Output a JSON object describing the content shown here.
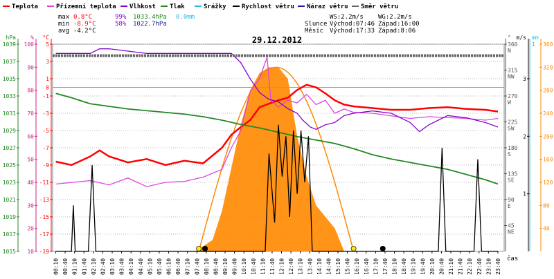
{
  "legend": [
    {
      "label": "Teplota",
      "color": "#ff0000"
    },
    {
      "label": "Přízemní teplota",
      "color": "#dd44dd"
    },
    {
      "label": "Vlhkost",
      "color": "#8800cc"
    },
    {
      "label": "Tlak",
      "color": "#228822"
    },
    {
      "label": "Srážky",
      "color": "#22bbdd"
    },
    {
      "label": "Rychlost větru",
      "color": "#000000"
    },
    {
      "label": "Náraz větru",
      "color": "#1a1a99"
    },
    {
      "label": "Směr větru",
      "color": "#666666"
    }
  ],
  "stats": {
    "max_label": "max",
    "min_label": "min",
    "avg_label": "avg",
    "max_temp": "0.8°C",
    "max_hum": "99%",
    "max_press": "1033.4hPa",
    "max_rain": "0.0mm",
    "min_temp": "-8.9°C",
    "min_hum": "58%",
    "min_press": "1022.7hPa",
    "avg_temp": "-4.2°C",
    "ws": "WS:2.2m/s",
    "wg": "WG:2.2m/s",
    "sun_label": "Slunce",
    "sunrise": "Východ:07:46",
    "sunset": "Západ:16:00",
    "moon_label": "Měsíc",
    "moonrise": "Východ:17:33",
    "moonset": "Západ:8:06"
  },
  "chart_data": {
    "type": "line",
    "title": "29.12.2012",
    "xlabel": "čas",
    "x_ticks": [
      "00:10",
      "00:40",
      "01:10",
      "01:40",
      "02:10",
      "02:40",
      "03:10",
      "03:40",
      "04:10",
      "04:40",
      "05:10",
      "05:40",
      "06:10",
      "06:40",
      "07:10",
      "07:40",
      "08:10",
      "08:40",
      "09:10",
      "09:40",
      "10:10",
      "10:40",
      "11:10",
      "11:40",
      "12:10",
      "12:40",
      "13:10",
      "13:40",
      "14:10",
      "14:40",
      "15:10",
      "15:40",
      "16:10",
      "16:40",
      "17:10",
      "17:40",
      "18:10",
      "18:40",
      "19:10",
      "19:40",
      "20:10",
      "20:40",
      "21:10",
      "21:40",
      "22:10",
      "22:40",
      "23:10",
      "23:40"
    ],
    "axes": {
      "hpa": {
        "label": "hPa",
        "ticks": [
          "1015",
          "1017",
          "1019",
          "1021",
          "1023",
          "1025",
          "1027",
          "1029",
          "1031",
          "1033",
          "1035",
          "1037",
          "1039"
        ]
      },
      "percent": {
        "label": "%",
        "ticks": [
          "10",
          "20",
          "30",
          "40",
          "50",
          "60",
          "70",
          "80",
          "90",
          "100"
        ]
      },
      "celsius": {
        "label": "°C",
        "ticks": [
          "-19",
          "-17",
          "-15",
          "-13",
          "-11",
          "-9",
          "-7",
          "-5",
          "-3",
          "-1",
          "1",
          "3",
          "5"
        ],
        "zero_label": "0"
      },
      "direction": {
        "label": "°",
        "ticks": [
          "45\nNE",
          "90\nE",
          "135\nSE",
          "180\nS",
          "225\nSW",
          "270\nW",
          "315\nNW",
          "360\nN"
        ]
      },
      "wind": {
        "label": "m/s",
        "ticks": [
          "1",
          "2",
          "3"
        ]
      },
      "rain": {
        "label": "mm",
        "ticks": [
          "1"
        ]
      },
      "solar": {
        "ticks": [
          "40",
          "80",
          "120",
          "160",
          "200",
          "240",
          "280",
          "320",
          "360"
        ]
      }
    },
    "series": [
      {
        "name": "Teplota",
        "unit": "°C",
        "color": "#ff0000",
        "points": [
          [
            0.17,
            -8.6
          ],
          [
            1,
            -9
          ],
          [
            2,
            -8
          ],
          [
            2.5,
            -7.3
          ],
          [
            3,
            -8
          ],
          [
            4,
            -8.7
          ],
          [
            5,
            -8.3
          ],
          [
            6,
            -9
          ],
          [
            7,
            -8.5
          ],
          [
            8,
            -8.8
          ],
          [
            9,
            -7
          ],
          [
            9.5,
            -5.5
          ],
          [
            10,
            -4.6
          ],
          [
            10.5,
            -3.8
          ],
          [
            11,
            -2.3
          ],
          [
            12,
            -1.5
          ],
          [
            12.5,
            -1.2
          ],
          [
            13,
            -0.3
          ],
          [
            13.5,
            0.3
          ],
          [
            14,
            0
          ],
          [
            14.5,
            -0.7
          ],
          [
            15,
            -1.5
          ],
          [
            15.5,
            -2
          ],
          [
            16,
            -2.2
          ],
          [
            17,
            -2.4
          ],
          [
            18,
            -2.6
          ],
          [
            19,
            -2.6
          ],
          [
            20,
            -2.4
          ],
          [
            21,
            -2.3
          ],
          [
            22,
            -2.5
          ],
          [
            23,
            -2.6
          ],
          [
            23.67,
            -2.8
          ]
        ]
      },
      {
        "name": "Přízemní teplota",
        "unit": "°C",
        "color": "#dd44dd",
        "points": [
          [
            0.17,
            -11.2
          ],
          [
            2,
            -10.8
          ],
          [
            3,
            -11.3
          ],
          [
            4,
            -10.5
          ],
          [
            5,
            -11.5
          ],
          [
            6,
            -11
          ],
          [
            7,
            -10.9
          ],
          [
            8,
            -10.4
          ],
          [
            9,
            -9.5
          ],
          [
            9.5,
            -7
          ],
          [
            10,
            -5
          ],
          [
            10.5,
            -0.5
          ],
          [
            11,
            1
          ],
          [
            11.4,
            3.5
          ],
          [
            11.6,
            -1.5
          ],
          [
            12,
            -2.3
          ],
          [
            12.5,
            -1.5
          ],
          [
            13,
            -1.8
          ],
          [
            13.5,
            -0.8
          ],
          [
            14,
            -2
          ],
          [
            14.5,
            -1.5
          ],
          [
            15,
            -3
          ],
          [
            15.5,
            -2.5
          ],
          [
            16,
            -2.9
          ],
          [
            17,
            -3
          ],
          [
            18,
            -3.3
          ],
          [
            19,
            -3.6
          ],
          [
            20,
            -3.4
          ],
          [
            21,
            -3.5
          ],
          [
            22,
            -3.6
          ],
          [
            23,
            -3.8
          ],
          [
            23.67,
            -3.6
          ]
        ]
      },
      {
        "name": "Vlhkost",
        "unit": "%",
        "color": "#8800cc",
        "points": [
          [
            0.17,
            96
          ],
          [
            1,
            96
          ],
          [
            2,
            96
          ],
          [
            2.5,
            98
          ],
          [
            3,
            98
          ],
          [
            4,
            97
          ],
          [
            5,
            96
          ],
          [
            6,
            96
          ],
          [
            7,
            96
          ],
          [
            8,
            96
          ],
          [
            9,
            96
          ],
          [
            9.5,
            96
          ],
          [
            10,
            92
          ],
          [
            10.5,
            85
          ],
          [
            11,
            79
          ],
          [
            11.5,
            76
          ],
          [
            12,
            75
          ],
          [
            12.5,
            72
          ],
          [
            13,
            70
          ],
          [
            13.3,
            67
          ],
          [
            13.7,
            64
          ],
          [
            14,
            63
          ],
          [
            14.5,
            65
          ],
          [
            15,
            66
          ],
          [
            15.5,
            69
          ],
          [
            16,
            70
          ],
          [
            17,
            71
          ],
          [
            18,
            70
          ],
          [
            19,
            66
          ],
          [
            19.5,
            62
          ],
          [
            20,
            65
          ],
          [
            21,
            69
          ],
          [
            22,
            68
          ],
          [
            23,
            66
          ],
          [
            23.67,
            64
          ]
        ]
      },
      {
        "name": "Tlak",
        "unit": "hPa",
        "color": "#228822",
        "points": [
          [
            0.17,
            1033.3
          ],
          [
            1,
            1032.8
          ],
          [
            2,
            1032.1
          ],
          [
            3,
            1031.8
          ],
          [
            4,
            1031.5
          ],
          [
            5,
            1031.3
          ],
          [
            6,
            1031.1
          ],
          [
            7,
            1030.9
          ],
          [
            8,
            1030.6
          ],
          [
            9,
            1030.2
          ],
          [
            10,
            1029.7
          ],
          [
            11,
            1029.3
          ],
          [
            12,
            1028.8
          ],
          [
            13,
            1028.3
          ],
          [
            14,
            1027.9
          ],
          [
            15,
            1027.5
          ],
          [
            16,
            1026.9
          ],
          [
            17,
            1026.2
          ],
          [
            18,
            1025.7
          ],
          [
            19,
            1025.3
          ],
          [
            20,
            1024.9
          ],
          [
            21,
            1024.5
          ],
          [
            22,
            1023.9
          ],
          [
            23,
            1023.3
          ],
          [
            23.67,
            1022.8
          ]
        ]
      },
      {
        "name": "Rychlost větru",
        "unit": "m/s",
        "color": "#000000",
        "points": [
          [
            0.17,
            0
          ],
          [
            1,
            0
          ],
          [
            1.1,
            0.8
          ],
          [
            1.2,
            0
          ],
          [
            1.9,
            0
          ],
          [
            2.1,
            1.5
          ],
          [
            2.3,
            0
          ],
          [
            11.3,
            0
          ],
          [
            11.5,
            1.7
          ],
          [
            11.8,
            0.5
          ],
          [
            12,
            2.2
          ],
          [
            12.2,
            1.3
          ],
          [
            12.4,
            2
          ],
          [
            12.6,
            0.6
          ],
          [
            12.8,
            2.1
          ],
          [
            13,
            1
          ],
          [
            13.2,
            2.1
          ],
          [
            13.4,
            1.2
          ],
          [
            13.6,
            2
          ],
          [
            13.8,
            0
          ],
          [
            20.5,
            0
          ],
          [
            20.7,
            1.8
          ],
          [
            20.9,
            0
          ],
          [
            22.4,
            0
          ],
          [
            22.6,
            1.6
          ],
          [
            22.8,
            0
          ],
          [
            23.67,
            0
          ]
        ]
      },
      {
        "name": "Směr větru",
        "unit": "°",
        "color": "#666666",
        "points": [
          [
            0.17,
            340
          ],
          [
            23.67,
            340
          ]
        ]
      }
    ],
    "solar_radiation": {
      "points": [
        [
          7.6,
          0
        ],
        [
          8.5,
          20
        ],
        [
          9,
          70
        ],
        [
          10,
          220
        ],
        [
          10.5,
          280
        ],
        [
          11,
          310
        ],
        [
          11.5,
          320
        ],
        [
          12,
          320
        ],
        [
          12.5,
          300
        ],
        [
          13,
          200
        ],
        [
          13.5,
          130
        ],
        [
          14,
          80
        ],
        [
          15,
          40
        ],
        [
          15.5,
          0
        ]
      ]
    },
    "solar_max_curve": {
      "peak": 320,
      "start": 7.77,
      "end": 16.0
    },
    "markers": [
      {
        "type": "sunrise",
        "x": 7.77
      },
      {
        "type": "moonset",
        "x": 8.1
      },
      {
        "type": "sunset",
        "x": 16.0
      },
      {
        "type": "moonrise",
        "x": 17.55
      }
    ]
  }
}
